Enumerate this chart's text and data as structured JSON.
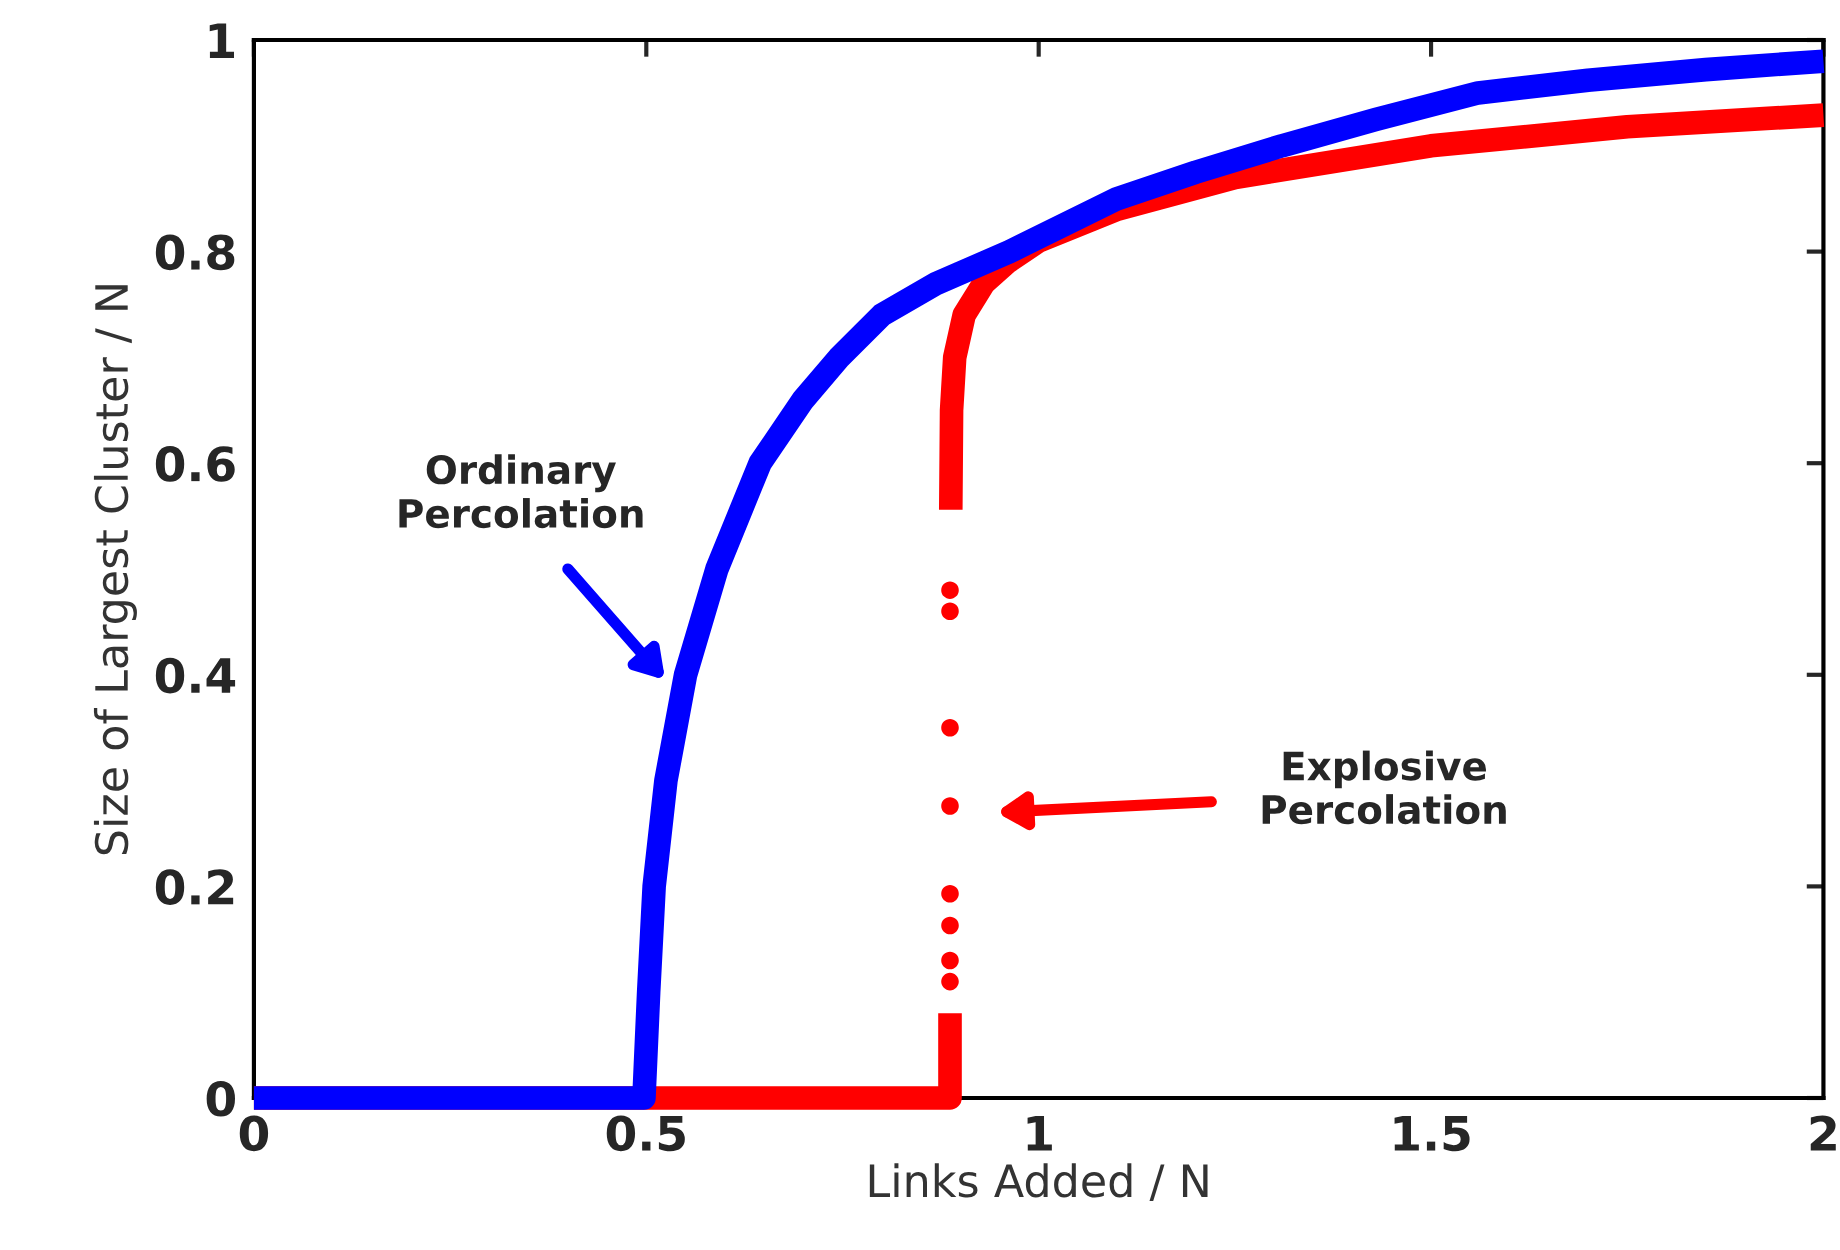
{
  "chart_data": {
    "type": "line",
    "xlabel": "Links Added / N",
    "ylabel": "Size of Largest Cluster / N",
    "xlim": [
      0,
      2
    ],
    "ylim": [
      0,
      1
    ],
    "xticks": [
      0,
      0.5,
      1,
      1.5,
      2
    ],
    "yticks": [
      0,
      0.2,
      0.4,
      0.6,
      0.8,
      1
    ],
    "grid": false,
    "legend": false,
    "series": [
      {
        "color": "#ff0000",
        "x": [
          0,
          0.887,
          0.887
        ],
        "values": [
          0,
          0,
          0.08
        ]
      },
      {
        "color": "#ff0000",
        "x": [
          0.888,
          0.889,
          0.893,
          0.905,
          0.93,
          0.96,
          1.0,
          1.1,
          1.25,
          1.5,
          1.75,
          2.0
        ],
        "values": [
          0.556,
          0.65,
          0.7,
          0.74,
          0.77,
          0.79,
          0.81,
          0.84,
          0.87,
          0.9,
          0.918,
          0.929
        ]
      },
      {
        "type": "scatter",
        "color": "#ff0000",
        "x": [
          0.887,
          0.887,
          0.887,
          0.887,
          0.887,
          0.887,
          0.887,
          0.887
        ],
        "values": [
          0.48,
          0.46,
          0.35,
          0.276,
          0.193,
          0.163,
          0.13,
          0.11
        ]
      },
      {
        "color": "#0000ff",
        "x": [
          0,
          0.497,
          0.503,
          0.51,
          0.525,
          0.55,
          0.59,
          0.645,
          0.7,
          0.746,
          0.8,
          0.87,
          0.963,
          1.1,
          1.2,
          1.31,
          1.43,
          1.56,
          1.7,
          1.85,
          2.0
        ],
        "values": [
          0,
          0,
          0.1,
          0.2,
          0.3,
          0.4,
          0.5,
          0.6,
          0.66,
          0.7,
          0.74,
          0.77,
          0.8,
          0.85,
          0.875,
          0.9,
          0.925,
          0.95,
          0.962,
          0.972,
          0.98
        ]
      }
    ],
    "annotations": [
      "Ordinary\nPercolation",
      "Explosive\nPercolation"
    ]
  }
}
